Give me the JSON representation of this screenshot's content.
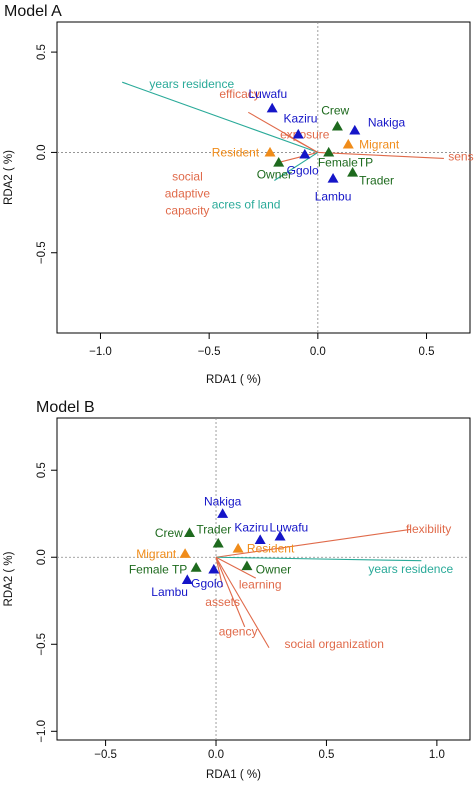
{
  "colors": {
    "arrow_orange": "#e06a4a",
    "arrow_teal": "#2aaa99",
    "tri_blue": "#1515c8",
    "tri_green": "#1e6a1e",
    "tri_orange": "#f08c1a",
    "text_orange": "#e06a4a",
    "text_teal": "#2aaa99",
    "text_blue": "#1515c8",
    "text_green": "#1e6a1e",
    "text_orange_site": "#f08c1a"
  },
  "chart_data": [
    {
      "type": "scatter",
      "panel_title": "Model A",
      "xlabel": "RDA1 ( %)",
      "ylabel": "RDA2 ( %)",
      "xlim": [
        -1.2,
        0.7
      ],
      "ylim": [
        -0.9,
        0.65
      ],
      "x_ticks": [
        -1.0,
        -0.5,
        0.0,
        0.5
      ],
      "x_tick_labels": [
        "−1.0",
        "−0.5",
        "0.0",
        "0.5"
      ],
      "y_ticks": [
        -0.5,
        0.0,
        0.5
      ],
      "y_tick_labels": [
        "−0.5",
        "0.0",
        "0.5"
      ],
      "zero_lines": true,
      "arrows": [
        {
          "label": "years residence",
          "x": -0.9,
          "y": 0.35,
          "color": "teal",
          "lx": -0.58,
          "ly": 0.32,
          "anchor": "middle"
        },
        {
          "label": "efficacy",
          "x": -0.32,
          "y": 0.2,
          "color": "orange",
          "lx": -0.36,
          "ly": 0.27,
          "anchor": "middle"
        },
        {
          "label": "exposure",
          "x": -0.15,
          "y": 0.09,
          "color": "orange",
          "lx": -0.06,
          "ly": 0.07,
          "anchor": "middle"
        },
        {
          "label": "sensitivity",
          "x": 0.58,
          "y": -0.03,
          "color": "orange",
          "lx": 0.6,
          "ly": -0.04,
          "anchor": "start"
        },
        {
          "label": "social\nadaptive\ncapacity",
          "x": -0.18,
          "y": -0.05,
          "color": "orange",
          "lx": -0.6,
          "ly": -0.14,
          "anchor": "middle"
        },
        {
          "label": "acres of land",
          "x": -0.2,
          "y": -0.14,
          "color": "teal",
          "lx": -0.33,
          "ly": -0.28,
          "anchor": "middle"
        }
      ],
      "points": [
        {
          "label": "Luwafu",
          "x": -0.21,
          "y": 0.22,
          "color": "blue",
          "lx": -0.23,
          "ly": 0.29,
          "anchor": "middle"
        },
        {
          "label": "Kaziru",
          "x": -0.09,
          "y": 0.09,
          "color": "blue",
          "lx": -0.08,
          "ly": 0.17,
          "anchor": "middle"
        },
        {
          "label": "Nakiga",
          "x": 0.17,
          "y": 0.11,
          "color": "blue",
          "lx": 0.23,
          "ly": 0.15,
          "anchor": "start"
        },
        {
          "label": "Crew",
          "x": 0.09,
          "y": 0.13,
          "color": "green",
          "lx": 0.08,
          "ly": 0.21,
          "anchor": "middle"
        },
        {
          "label": "Migrant",
          "x": 0.14,
          "y": 0.04,
          "color": "orange",
          "lx": 0.19,
          "ly": 0.04,
          "anchor": "start"
        },
        {
          "label": "Resident",
          "x": -0.22,
          "y": 0.0,
          "color": "orange",
          "lx": -0.27,
          "ly": 0.0,
          "anchor": "end"
        },
        {
          "label": "FemaleTP",
          "x": 0.05,
          "y": 0.0,
          "color": "green",
          "lx": 0.0,
          "ly": -0.05,
          "anchor": "start"
        },
        {
          "label": "Owner",
          "x": -0.18,
          "y": -0.05,
          "color": "green",
          "lx": -0.2,
          "ly": -0.11,
          "anchor": "middle"
        },
        {
          "label": "Ggolo",
          "x": -0.06,
          "y": -0.01,
          "color": "blue",
          "lx": -0.07,
          "ly": -0.09,
          "anchor": "middle"
        },
        {
          "label": "Lambu",
          "x": 0.07,
          "y": -0.13,
          "color": "blue",
          "lx": 0.07,
          "ly": -0.22,
          "anchor": "middle"
        },
        {
          "label": "Trader",
          "x": 0.16,
          "y": -0.1,
          "color": "green",
          "lx": 0.19,
          "ly": -0.14,
          "anchor": "start"
        }
      ]
    },
    {
      "type": "scatter",
      "panel_title": "Model B",
      "xlabel": "RDA1 ( %)",
      "ylabel": "RDA2 ( %)",
      "xlim": [
        -0.72,
        1.15
      ],
      "ylim": [
        -1.05,
        0.8
      ],
      "x_ticks": [
        -0.5,
        0.0,
        0.5,
        1.0
      ],
      "x_tick_labels": [
        "−0.5",
        "0.0",
        "0.5",
        "1.0"
      ],
      "y_ticks": [
        -1.0,
        -0.5,
        0.0,
        0.5
      ],
      "y_tick_labels": [
        "−1.0",
        "−0.5",
        "0.0",
        "0.5"
      ],
      "zero_lines": true,
      "arrows": [
        {
          "label": "flexibility",
          "x": 0.88,
          "y": 0.16,
          "color": "orange",
          "lx": 0.86,
          "ly": 0.14,
          "anchor": "start"
        },
        {
          "label": "years residence",
          "x": 0.93,
          "y": -0.02,
          "color": "teal",
          "lx": 0.69,
          "ly": -0.09,
          "anchor": "start"
        },
        {
          "label": "assets",
          "x": 0.03,
          "y": -0.17,
          "color": "orange",
          "lx": 0.03,
          "ly": -0.28,
          "anchor": "middle"
        },
        {
          "label": "learning",
          "x": 0.18,
          "y": -0.12,
          "color": "orange",
          "lx": 0.2,
          "ly": -0.18,
          "anchor": "middle"
        },
        {
          "label": "agency",
          "x": 0.13,
          "y": -0.4,
          "color": "orange",
          "lx": 0.1,
          "ly": -0.45,
          "anchor": "middle"
        },
        {
          "label": "social organization",
          "x": 0.24,
          "y": -0.52,
          "color": "orange",
          "lx": 0.31,
          "ly": -0.52,
          "anchor": "start"
        }
      ],
      "points": [
        {
          "label": "Nakiga",
          "x": 0.03,
          "y": 0.25,
          "color": "blue",
          "lx": 0.03,
          "ly": 0.32,
          "anchor": "middle"
        },
        {
          "label": "Crew",
          "x": -0.12,
          "y": 0.14,
          "color": "green",
          "lx": -0.15,
          "ly": 0.14,
          "anchor": "end"
        },
        {
          "label": "Trader",
          "x": 0.01,
          "y": 0.08,
          "color": "green",
          "lx": -0.01,
          "ly": 0.16,
          "anchor": "middle"
        },
        {
          "label": "Kaziru",
          "x": 0.2,
          "y": 0.1,
          "color": "blue",
          "lx": 0.16,
          "ly": 0.17,
          "anchor": "middle"
        },
        {
          "label": "Luwafu",
          "x": 0.29,
          "y": 0.12,
          "color": "blue",
          "lx": 0.33,
          "ly": 0.17,
          "anchor": "middle"
        },
        {
          "label": "Resident",
          "x": 0.1,
          "y": 0.05,
          "color": "orange",
          "lx": 0.14,
          "ly": 0.05,
          "anchor": "start"
        },
        {
          "label": "Migrant",
          "x": -0.14,
          "y": 0.02,
          "color": "orange",
          "lx": -0.18,
          "ly": 0.02,
          "anchor": "end"
        },
        {
          "label": "Female TP",
          "x": -0.09,
          "y": -0.06,
          "color": "green",
          "lx": -0.13,
          "ly": -0.07,
          "anchor": "end"
        },
        {
          "label": "Owner",
          "x": 0.14,
          "y": -0.05,
          "color": "green",
          "lx": 0.18,
          "ly": -0.07,
          "anchor": "start"
        },
        {
          "label": "Lambu",
          "x": -0.13,
          "y": -0.13,
          "color": "blue",
          "lx": -0.21,
          "ly": -0.2,
          "anchor": "middle"
        },
        {
          "label": "Ggolo",
          "x": -0.01,
          "y": -0.07,
          "color": "blue",
          "lx": -0.04,
          "ly": -0.15,
          "anchor": "middle"
        }
      ]
    }
  ]
}
